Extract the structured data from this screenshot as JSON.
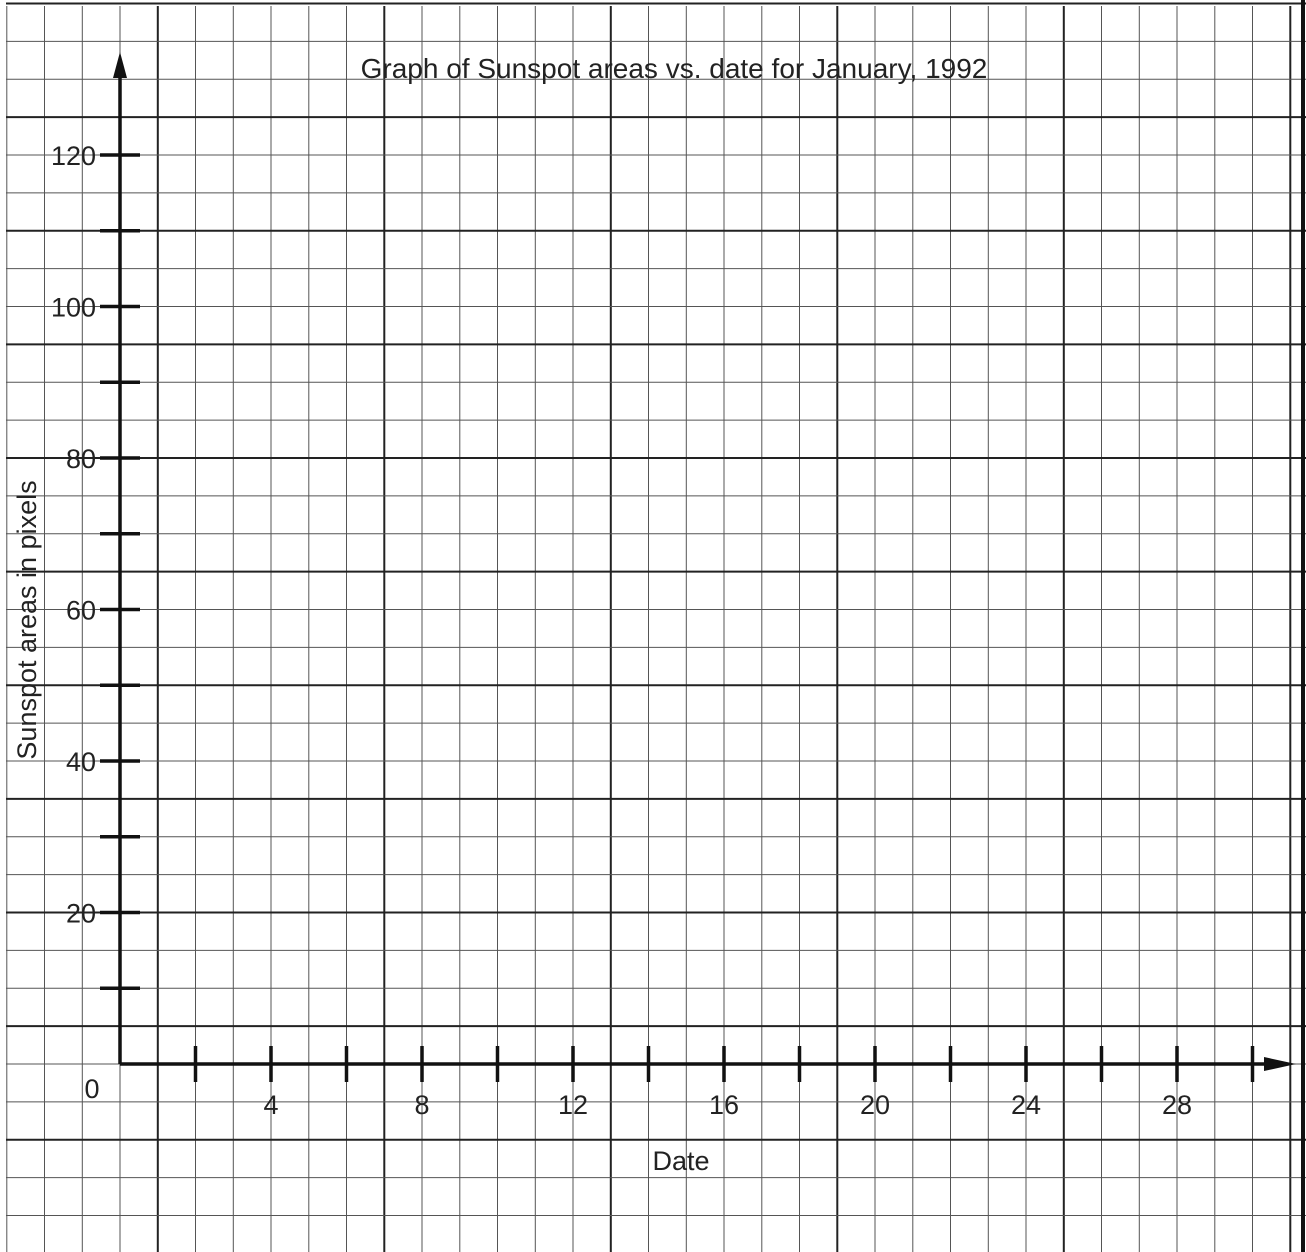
{
  "chart_data": {
    "type": "scatter",
    "title": "Graph of Sunspot areas vs. date for January, 1992",
    "xlabel": "Date",
    "ylabel": "Sunspot areas in pixels",
    "xlim": [
      0,
      30
    ],
    "ylim": [
      0,
      120
    ],
    "origin_label": "0",
    "x_tick_labels": [
      "4",
      "8",
      "12",
      "16",
      "20",
      "24",
      "28"
    ],
    "y_tick_labels": [
      "120",
      "100",
      "80",
      "60",
      "40",
      "20"
    ],
    "x_minor_ticks": [
      2,
      4,
      6,
      8,
      10,
      12,
      14,
      16,
      18,
      20,
      22,
      24,
      26,
      28,
      30
    ],
    "y_minor_ticks": [
      10,
      20,
      30,
      40,
      50,
      60,
      70,
      80,
      90,
      100,
      110,
      120
    ],
    "grid": true,
    "series": []
  }
}
